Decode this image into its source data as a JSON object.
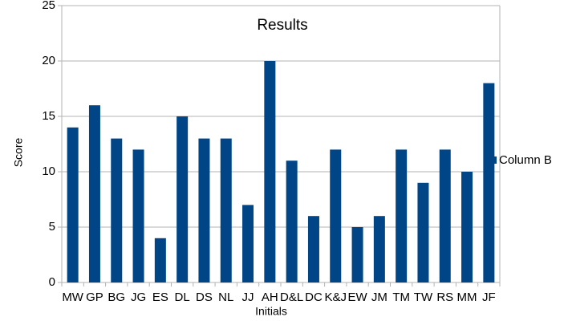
{
  "chart_data": {
    "type": "bar",
    "title": "Results",
    "x_label": "Initials",
    "y_label": "Score",
    "categories": [
      "MW",
      "GP",
      "BG",
      "JG",
      "ES",
      "DL",
      "DS",
      "NL",
      "JJ",
      "AH",
      "D&L",
      "DC",
      "K&J",
      "EW",
      "JM",
      "TM",
      "TW",
      "RS",
      "MM",
      "JF"
    ],
    "series": [
      {
        "name": "Column B",
        "color": "#004586",
        "values": [
          14,
          16,
          13,
          12,
          4,
          15,
          13,
          13,
          7,
          20,
          11,
          6,
          12,
          5,
          6,
          12,
          9,
          12,
          10,
          18
        ]
      }
    ],
    "ylim": [
      0,
      25
    ],
    "yticks": [
      0,
      5,
      10,
      15,
      20,
      25
    ],
    "grid": true,
    "legend": "right"
  }
}
